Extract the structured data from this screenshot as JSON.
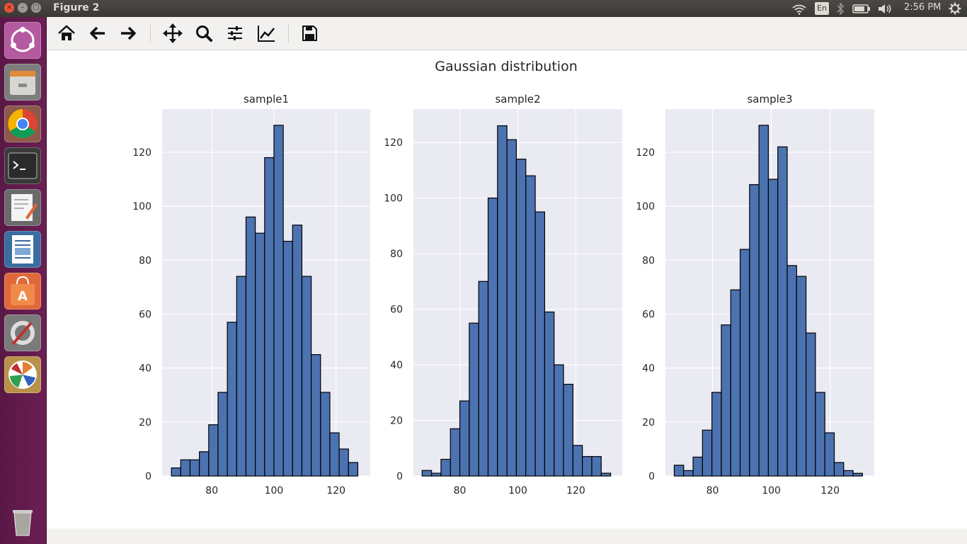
{
  "window": {
    "title": "Figure 2",
    "close_glyph": "×",
    "min_glyph": "–",
    "max_glyph": "□"
  },
  "top_panel": {
    "icons": [
      "wifi-icon",
      "bluetooth-icon",
      "battery-icon",
      "volume-icon",
      "settings-gear-icon"
    ],
    "language": "En",
    "clock": "2:56 PM"
  },
  "launcher": {
    "items": [
      {
        "name": "ubuntu-dash-icon",
        "color": "#b45aa0"
      },
      {
        "name": "files-icon",
        "color": "#8a8a8a"
      },
      {
        "name": "chrome-icon",
        "color": "#8c5a4a"
      },
      {
        "name": "terminal-icon",
        "color": "#2b2b2b"
      },
      {
        "name": "text-editor-icon",
        "color": "#6a6a6a"
      },
      {
        "name": "libreoffice-writer-icon",
        "color": "#3a6da0"
      },
      {
        "name": "software-center-icon",
        "color": "#e0683a"
      },
      {
        "name": "system-settings-icon",
        "color": "#7a7a7a"
      },
      {
        "name": "matplotlib-icon",
        "color": "#b8924a"
      },
      {
        "name": "trash-icon",
        "color": "#6b1f54"
      }
    ]
  },
  "toolbar": {
    "buttons": [
      "home-icon",
      "back-arrow-icon",
      "forward-arrow-icon",
      "pan-icon",
      "zoom-icon",
      "subplots-config-icon",
      "edit-axis-icon",
      "save-icon"
    ]
  },
  "colors": {
    "bar_fill": "#4c72b0",
    "bar_edge": "#000000",
    "axes_bg": "#eaeaf2",
    "grid": "#ffffff"
  },
  "chart_data": {
    "type": "bar",
    "title": "Gaussian distribution",
    "subplots": [
      {
        "title": "sample1",
        "xlim": [
          64,
          131
        ],
        "ylim": [
          0,
          136
        ],
        "xticks": [
          80,
          100,
          120
        ],
        "yticks": [
          0,
          20,
          40,
          60,
          80,
          100,
          120
        ],
        "bin_start": 67,
        "bin_width": 3,
        "values": [
          3,
          6,
          6,
          9,
          19,
          31,
          57,
          74,
          96,
          90,
          118,
          130,
          87,
          93,
          74,
          45,
          31,
          16,
          10,
          5
        ]
      },
      {
        "title": "sample2",
        "xlim": [
          64,
          136
        ],
        "ylim": [
          0,
          132
        ],
        "xticks": [
          80,
          100,
          120
        ],
        "yticks": [
          0,
          20,
          40,
          60,
          80,
          100,
          120
        ],
        "bin_start": 67,
        "bin_width": 3.25,
        "values": [
          2,
          1,
          6,
          17,
          27,
          55,
          70,
          100,
          126,
          121,
          114,
          108,
          95,
          59,
          40,
          33,
          11,
          7,
          7,
          1
        ]
      },
      {
        "title": "sample3",
        "xlim": [
          64,
          135
        ],
        "ylim": [
          0,
          136
        ],
        "xticks": [
          80,
          100,
          120
        ],
        "yticks": [
          0,
          20,
          40,
          60,
          80,
          100,
          120
        ],
        "bin_start": 67,
        "bin_width": 3.2,
        "values": [
          4,
          2,
          7,
          17,
          31,
          56,
          69,
          84,
          108,
          130,
          110,
          122,
          78,
          74,
          53,
          31,
          16,
          5,
          2,
          1
        ]
      }
    ]
  }
}
